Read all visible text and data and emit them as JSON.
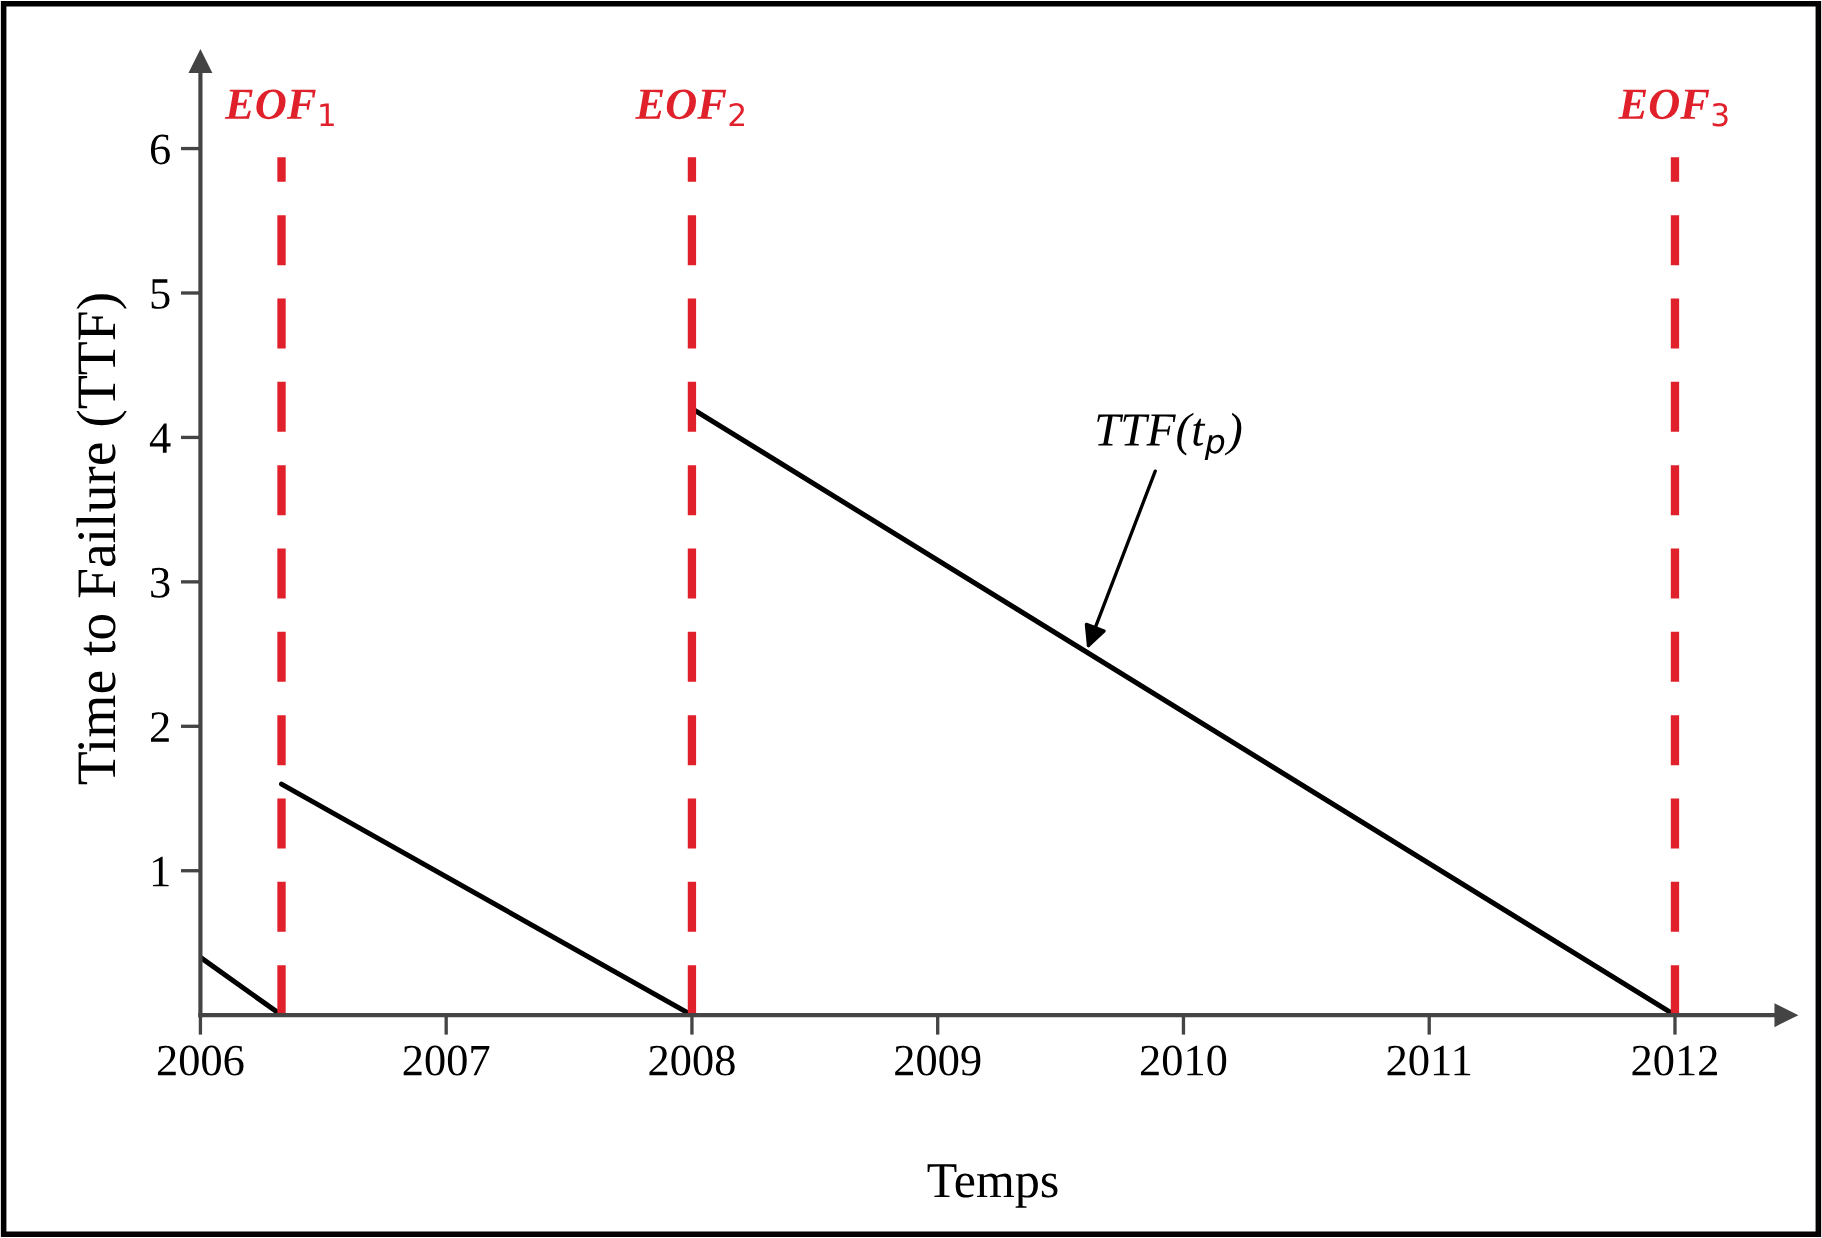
{
  "chart_data": {
    "type": "line",
    "xlabel": "Temps",
    "ylabel": "Time to Failure (TTF)",
    "xlim": [
      2006,
      2012.45
    ],
    "xticks": [
      2006,
      2007,
      2008,
      2009,
      2010,
      2011,
      2012
    ],
    "ylim": [
      0,
      6.6
    ],
    "yticks": [
      1,
      2,
      3,
      4,
      5,
      6
    ],
    "series": [
      {
        "color": "#000000",
        "x": [
          2006,
          2006.33
        ],
        "values": [
          0.4,
          0
        ]
      },
      {
        "color": "#000000",
        "x": [
          2006.33,
          2008
        ],
        "values": [
          1.6,
          0
        ]
      },
      {
        "color": "#000000",
        "x": [
          2008,
          2012
        ],
        "values": [
          4.2,
          0
        ]
      }
    ],
    "ref_lines": [
      {
        "axis": "x",
        "value": 2006.33,
        "label": "EOF$_{1}$",
        "color": "#e0202a",
        "line_style": "dashed"
      },
      {
        "axis": "x",
        "value": 2008,
        "label": "EOF$_{2}$",
        "color": "#e0202a",
        "line_style": "dashed"
      },
      {
        "axis": "x",
        "value": 2012,
        "label": "EOF$_{3}$",
        "color": "#e0202a",
        "line_style": "dashed"
      }
    ],
    "annotations": [
      {
        "text": "TTF(t$_{p}$)",
        "x": 2009.6,
        "y": 2.5
      }
    ],
    "grid": false,
    "marker": "none",
    "line_style": "solid"
  }
}
